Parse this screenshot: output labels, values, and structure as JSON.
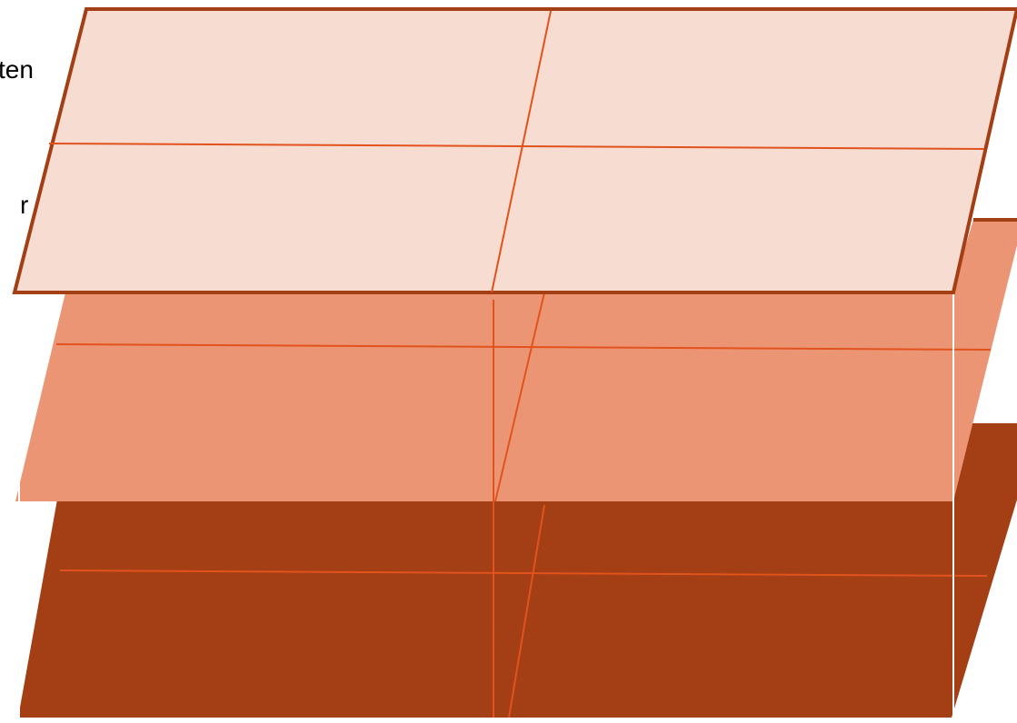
{
  "labels": {
    "top_fragment": "ten",
    "middle_fragment": "r"
  },
  "layers": [
    {
      "id": "bottom-layer",
      "fill": "#A33E15"
    },
    {
      "id": "middle-layer",
      "fill": "#EC9574"
    },
    {
      "id": "top-layer",
      "fill": "#F7DCD1"
    }
  ],
  "colors": {
    "grid_line": "#E2521D",
    "top_outline": "#A33E15",
    "connector_white": "#FFFFFF"
  }
}
